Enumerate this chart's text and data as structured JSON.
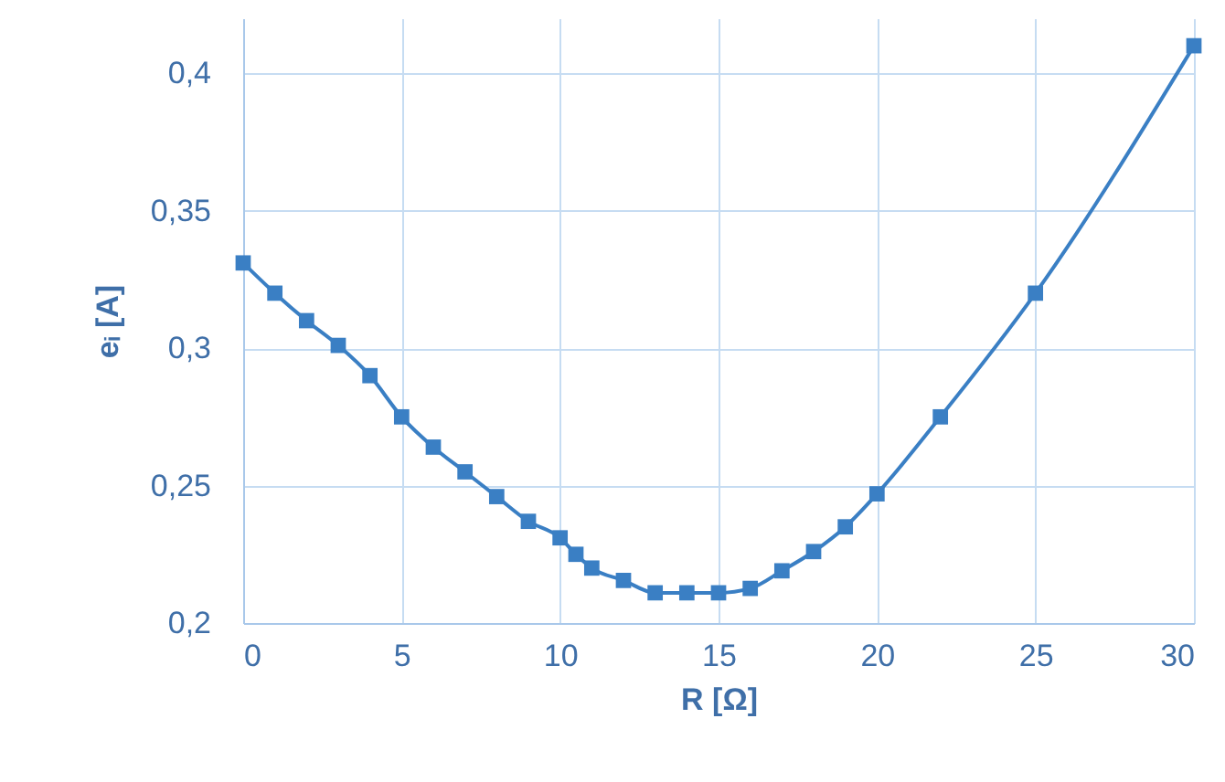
{
  "chart_data": {
    "type": "line",
    "xlabel": "R [Ω]",
    "ylabel": "eᵢ [A]",
    "x": [
      0,
      1,
      2,
      3,
      4,
      5,
      6,
      7,
      8,
      9,
      10,
      10.5,
      11,
      12,
      13,
      14,
      15,
      16,
      17,
      18,
      19,
      20,
      22,
      25,
      30
    ],
    "series": [
      {
        "color": "#3a7fc4",
        "values": [
          0.331,
          0.32,
          0.31,
          0.301,
          0.29,
          0.275,
          0.264,
          0.255,
          0.246,
          0.237,
          0.231,
          0.225,
          0.22,
          0.2155,
          0.211,
          0.211,
          0.211,
          0.2126,
          0.219,
          0.226,
          0.235,
          0.247,
          0.275,
          0.32,
          0.41
        ]
      }
    ],
    "xlim": [
      0,
      30
    ],
    "xticks": [
      0,
      5,
      10,
      15,
      20,
      25,
      30
    ],
    "ylim": [
      0.2,
      0.42
    ],
    "yticks": [
      {
        "value": 0.2,
        "label": "0,2"
      },
      {
        "value": 0.25,
        "label": "0,25"
      },
      {
        "value": 0.3,
        "label": "0,3"
      },
      {
        "value": 0.35,
        "label": "0,35"
      },
      {
        "value": 0.4,
        "label": "0,4"
      }
    ],
    "grid": true,
    "marker": "square",
    "line_style": "solid"
  }
}
